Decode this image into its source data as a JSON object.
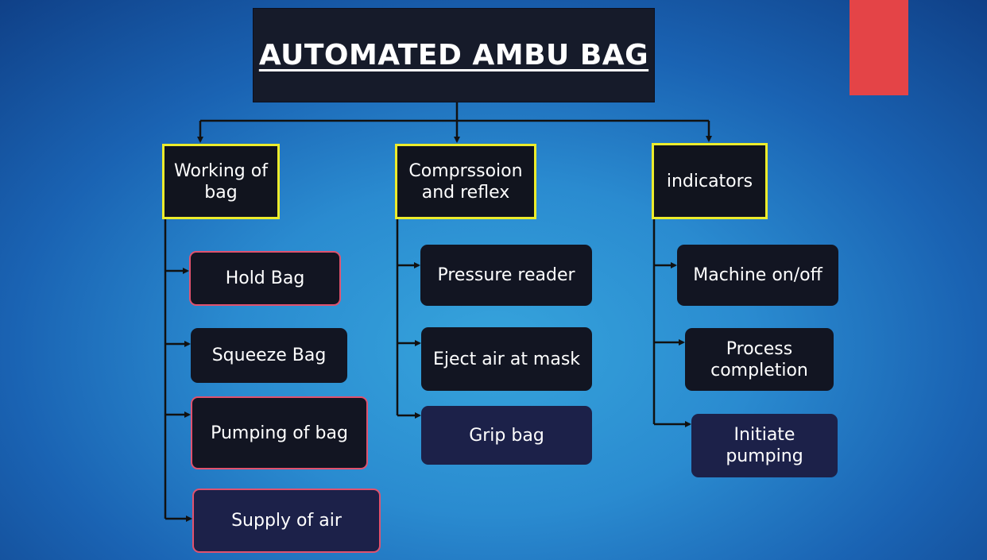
{
  "title": "AUTOMATED AMBU BAG",
  "colors": {
    "box_fill": "#11141e",
    "category_border": "#ecec2c",
    "highlight_border": "#e0526e",
    "connector": "#111111",
    "accent_block": "#e44447"
  },
  "categories": [
    {
      "label": "Working of bag",
      "items": [
        "Hold Bag",
        "Squeeze Bag",
        "Pumping of bag",
        "Supply of air"
      ]
    },
    {
      "label": "Comprssoion and reflex",
      "items": [
        "Pressure reader",
        "Eject air at mask",
        "Grip bag"
      ]
    },
    {
      "label": "indicators",
      "items": [
        "Machine on/off",
        "Process completion",
        "Initiate pumping"
      ]
    }
  ]
}
